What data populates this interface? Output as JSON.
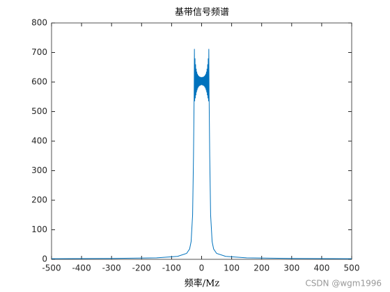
{
  "chart_data": {
    "type": "line",
    "title": "基带信号频谱",
    "x_label": "频率/Mz",
    "watermark": "CSDN @wgm1996",
    "color": "#0072bd",
    "x": [
      -500,
      -300,
      -150,
      -80,
      -50,
      -40,
      -35,
      -30,
      -27,
      -25,
      -24,
      -23,
      -22,
      -21,
      -20,
      -19,
      -18,
      -17,
      -16,
      -15,
      -14,
      -13,
      -12,
      -11,
      -10,
      -9,
      -8,
      -7,
      -6,
      -5,
      -4,
      -3,
      -2,
      -1,
      0,
      1,
      2,
      3,
      4,
      5,
      6,
      7,
      8,
      9,
      10,
      11,
      12,
      13,
      14,
      15,
      16,
      17,
      18,
      19,
      20,
      21,
      22,
      23,
      24,
      25,
      27,
      30,
      35,
      40,
      50,
      80,
      150,
      300,
      500
    ],
    "values": [
      2,
      3,
      5,
      10,
      20,
      35,
      60,
      150,
      350,
      550,
      712,
      535,
      680,
      545,
      660,
      555,
      645,
      565,
      635,
      572,
      628,
      578,
      624,
      582,
      621,
      585,
      619,
      587,
      618,
      588,
      617,
      589,
      617,
      590,
      616,
      590,
      617,
      589,
      617,
      588,
      618,
      587,
      619,
      585,
      621,
      582,
      624,
      578,
      628,
      572,
      635,
      565,
      645,
      555,
      660,
      545,
      680,
      535,
      712,
      550,
      350,
      150,
      60,
      35,
      20,
      10,
      5,
      3,
      2
    ],
    "xlim": [
      -500,
      500
    ],
    "ylim": [
      0,
      800
    ],
    "xticks": [
      -500,
      -400,
      -300,
      -200,
      -100,
      0,
      100,
      200,
      300,
      400,
      500
    ],
    "yticks": [
      0,
      100,
      200,
      300,
      400,
      500,
      600,
      700,
      800
    ]
  }
}
